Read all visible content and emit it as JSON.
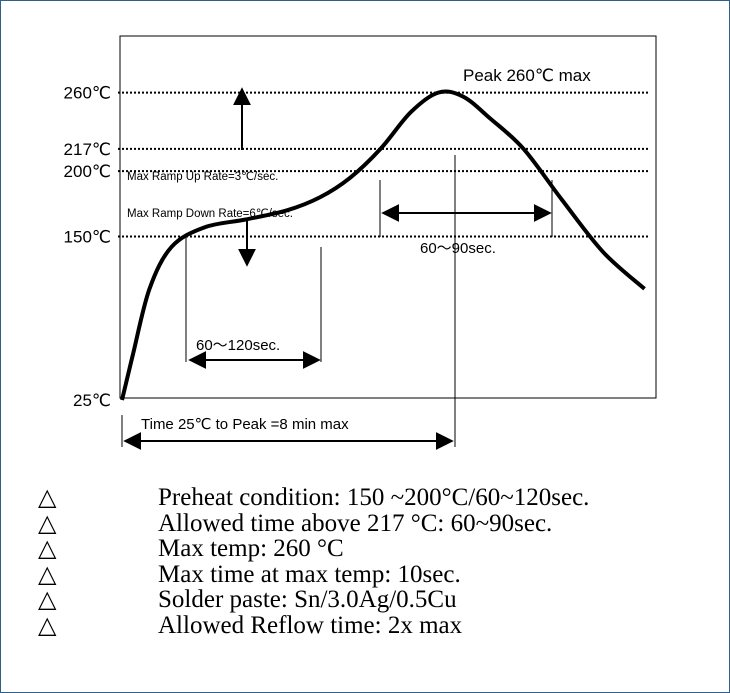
{
  "chart_data": {
    "type": "line",
    "title": "",
    "xlabel": "",
    "ylabel": "",
    "y_unit": "℃",
    "y_ticks": [
      {
        "value": 25,
        "label": "25℃"
      },
      {
        "value": 150,
        "label": "150℃"
      },
      {
        "value": 200,
        "label": "200℃"
      },
      {
        "value": 217,
        "label": "217℃"
      },
      {
        "value": 260,
        "label": "260℃"
      }
    ],
    "reference_lines_y": [
      150,
      200,
      217,
      260
    ],
    "series": [
      {
        "points": [
          [
            0,
            25
          ],
          [
            4,
            60
          ],
          [
            10,
            110
          ],
          [
            18,
            142
          ],
          [
            30,
            157
          ],
          [
            45,
            163
          ],
          [
            60,
            170
          ],
          [
            72,
            180
          ],
          [
            83,
            195
          ],
          [
            94,
            217
          ],
          [
            105,
            245
          ],
          [
            115,
            260
          ],
          [
            124,
            257
          ],
          [
            134,
            240
          ],
          [
            146,
            217
          ],
          [
            160,
            178
          ],
          [
            175,
            138
          ],
          [
            190,
            110
          ]
        ]
      }
    ],
    "annotations": {
      "peak": "Peak 260℃  max",
      "ramp_up": "Max Ramp Up Rate=3℃/sec.",
      "ramp_down": "Max Ramp Down Rate=6℃/sec.",
      "soak_window": "60～120sec.",
      "above_217": "60～90sec.",
      "total_time": "Time 25℃ to Peak =8 min max"
    }
  },
  "notes": [
    "Preheat condition: 150 ~200°C/60~120sec.",
    "Allowed time above 217 °C: 60~90sec.",
    "Max temp: 260 °C",
    "Max time at max temp: 10sec.",
    "Solder paste: Sn/3.0Ag/0.5Cu",
    "Allowed Reflow time: 2x max"
  ],
  "note_bullet": "△"
}
